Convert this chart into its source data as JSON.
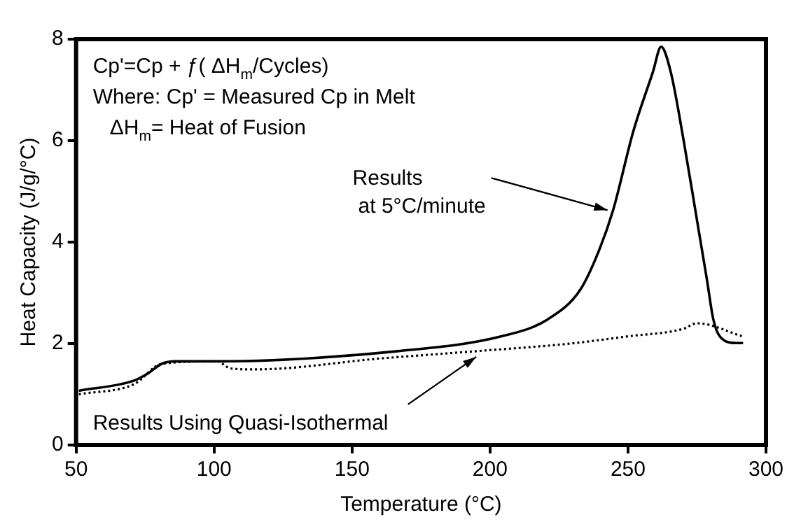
{
  "chart_data": {
    "type": "line",
    "xlabel": "Temperature (°C)",
    "ylabel": "Heat Capacity (J/g/°C)",
    "xlim": [
      50,
      300
    ],
    "xticks": [
      50,
      100,
      150,
      200,
      250,
      300
    ],
    "ylim": [
      0,
      8
    ],
    "yticks": [
      0,
      2,
      4,
      6,
      8
    ],
    "grid": false,
    "marker": "none",
    "series": [
      {
        "color": "#000000",
        "line_style": "solid",
        "x": [
          51,
          71,
          76,
          81,
          86,
          101,
          166.5,
          204,
          221,
          232.8,
          239.6,
          244.6,
          251.9,
          259,
          262,
          265.5,
          270.2,
          275,
          278.6,
          280.9,
          283.3,
          289.3,
          291.7
        ],
        "values": [
          1.07,
          1.27,
          1.41,
          1.6,
          1.65,
          1.65,
          1.85,
          2.14,
          2.48,
          3.07,
          3.85,
          4.63,
          6.18,
          7.35,
          7.85,
          7.35,
          5.99,
          4.43,
          3.26,
          2.48,
          2.14,
          2.01,
          2.01
        ]
      },
      {
        "color": "#000000",
        "line_style": "dotted",
        "x": [
          51,
          71,
          81,
          101,
          106,
          114.5,
          161,
          195,
          229,
          249.6,
          270,
          275,
          291.7
        ],
        "values": [
          1.0,
          1.2,
          1.6,
          1.65,
          1.51,
          1.49,
          1.71,
          1.85,
          2.0,
          2.14,
          2.29,
          2.4,
          2.14
        ]
      }
    ],
    "annotations": [
      "Cp'=Cp + ƒ( ΔH$_{m}$/Cycles)",
      "Where: Cp' = Measured Cp in Melt",
      "ΔH$_{m}$= Heat of Fusion",
      {
        "text": "Results\nat 5°C/minute",
        "x": 244.6,
        "y": 4.63
      },
      {
        "text": "Results Using Quasi-Isothermal",
        "x": 195,
        "y": 1.85
      }
    ]
  }
}
